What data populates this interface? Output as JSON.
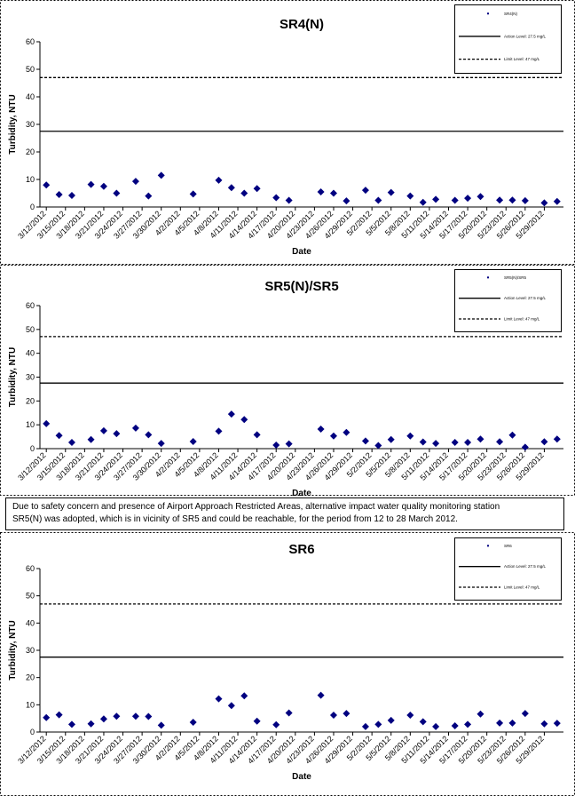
{
  "chart_data": [
    {
      "type": "scatter",
      "title": "SR4(N)",
      "x_label": "Date",
      "y_label": "Turbidity, NTU",
      "xlim": [
        "3/11/2012",
        "6/1/2012"
      ],
      "ylim": [
        0,
        60
      ],
      "yticks": [
        0,
        10,
        20,
        30,
        40,
        50,
        60
      ],
      "xticks": [
        "3/12/2012",
        "3/15/2012",
        "3/18/2012",
        "3/21/2012",
        "3/24/2012",
        "3/27/2012",
        "3/30/2012",
        "4/2/2012",
        "4/5/2012",
        "4/8/2012",
        "4/11/2012",
        "4/14/2012",
        "4/17/2012",
        "4/20/2012",
        "4/23/2012",
        "4/26/2012",
        "4/29/2012",
        "5/2/2012",
        "5/5/2012",
        "5/8/2012",
        "5/11/2012",
        "5/14/2012",
        "5/17/2012",
        "5/20/2012",
        "5/23/2012",
        "5/26/2012",
        "5/29/2012"
      ],
      "series": [
        {
          "name": "SR4(N)",
          "color": "#000080",
          "x": [
            "3/12/2012",
            "3/14/2012",
            "3/16/2012",
            "3/19/2012",
            "3/21/2012",
            "3/23/2012",
            "3/26/2012",
            "3/28/2012",
            "3/30/2012",
            "4/4/2012",
            "4/8/2012",
            "4/10/2012",
            "4/12/2012",
            "4/14/2012",
            "4/17/2012",
            "4/19/2012",
            "4/24/2012",
            "4/26/2012",
            "4/28/2012",
            "5/1/2012",
            "5/3/2012",
            "5/5/2012",
            "5/8/2012",
            "5/10/2012",
            "5/12/2012",
            "5/15/2012",
            "5/17/2012",
            "5/19/2012",
            "5/22/2012",
            "5/24/2012",
            "5/26/2012",
            "5/29/2012",
            "5/31/2012"
          ],
          "values": [
            8,
            4.5,
            4.2,
            8.2,
            7.5,
            5,
            9.3,
            4,
            11.5,
            4.7,
            9.7,
            7,
            5,
            6.7,
            3.4,
            2.4,
            5.5,
            5,
            2.2,
            6.1,
            2.4,
            5.3,
            4,
            1.7,
            2.8,
            2.4,
            3.2,
            3.8,
            2.5,
            2.5,
            2.3,
            1.5,
            2
          ]
        }
      ],
      "reference_lines": [
        {
          "name": "Action Level: 27.5 mg/L",
          "value": 27.5,
          "style": "solid",
          "color": "#000000"
        },
        {
          "name": "Limit Level: 47 mg/L",
          "value": 47,
          "style": "dashed",
          "color": "#000000"
        }
      ]
    },
    {
      "type": "scatter",
      "title": "SR5(N)/SR5",
      "x_label": "Date",
      "y_label": "Turbidity, NTU",
      "xlim": [
        "3/11/2012",
        "6/1/2012"
      ],
      "ylim": [
        0,
        60
      ],
      "yticks": [
        0,
        10,
        20,
        30,
        40,
        50,
        60
      ],
      "xticks": [
        "3/12/2012",
        "3/15/2012",
        "3/18/2012",
        "3/21/2012",
        "3/24/2012",
        "3/27/2012",
        "3/30/2012",
        "4/2/2012",
        "4/5/2012",
        "4/8/2012",
        "4/11/2012",
        "4/14/2012",
        "4/17/2012",
        "4/20/2012",
        "4/23/2012",
        "4/26/2012",
        "4/29/2012",
        "5/2/2012",
        "5/5/2012",
        "5/8/2012",
        "5/11/2012",
        "5/14/2012",
        "5/17/2012",
        "5/20/2012",
        "5/23/2012",
        "5/26/2012",
        "5/29/2012"
      ],
      "series": [
        {
          "name": "SR5(N)/SR5",
          "color": "#000080",
          "x": [
            "3/12/2012",
            "3/14/2012",
            "3/16/2012",
            "3/19/2012",
            "3/21/2012",
            "3/23/2012",
            "3/26/2012",
            "3/28/2012",
            "3/30/2012",
            "4/4/2012",
            "4/8/2012",
            "4/10/2012",
            "4/12/2012",
            "4/14/2012",
            "4/17/2012",
            "4/19/2012",
            "4/24/2012",
            "4/26/2012",
            "4/28/2012",
            "5/1/2012",
            "5/3/2012",
            "5/5/2012",
            "5/8/2012",
            "5/10/2012",
            "5/12/2012",
            "5/15/2012",
            "5/17/2012",
            "5/19/2012",
            "5/22/2012",
            "5/24/2012",
            "5/26/2012",
            "5/29/2012",
            "5/31/2012"
          ],
          "values": [
            10.5,
            5.5,
            2.6,
            3.8,
            7.5,
            6.3,
            8.6,
            5.8,
            2.2,
            3,
            7.3,
            14.5,
            12.2,
            5.8,
            1.5,
            2,
            8.2,
            5.3,
            6.8,
            3.2,
            1.3,
            3.8,
            5.3,
            2.8,
            2.2,
            2.6,
            2.6,
            4,
            2.9,
            5.7,
            0.6,
            2.9,
            4
          ]
        }
      ],
      "reference_lines": [
        {
          "name": "Action Level: 27.5 mg/L",
          "value": 27.5,
          "style": "solid",
          "color": "#000000"
        },
        {
          "name": "Limit Level: 47 mg/L",
          "value": 47,
          "style": "dashed",
          "color": "#000000"
        }
      ]
    },
    {
      "type": "scatter",
      "title": "SR6",
      "x_label": "Date",
      "y_label": "Turbidity, NTU",
      "xlim": [
        "3/11/2012",
        "6/1/2012"
      ],
      "ylim": [
        0,
        60
      ],
      "yticks": [
        0,
        10,
        20,
        30,
        40,
        50,
        60
      ],
      "xticks": [
        "3/12/2012",
        "3/15/2012",
        "3/18/2012",
        "3/21/2012",
        "3/24/2012",
        "3/27/2012",
        "3/30/2012",
        "4/2/2012",
        "4/5/2012",
        "4/8/2012",
        "4/11/2012",
        "4/14/2012",
        "4/17/2012",
        "4/20/2012",
        "4/23/2012",
        "4/26/2012",
        "4/29/2012",
        "5/2/2012",
        "5/5/2012",
        "5/8/2012",
        "5/11/2012",
        "5/14/2012",
        "5/17/2012",
        "5/20/2012",
        "5/23/2012",
        "5/26/2012",
        "5/29/2012"
      ],
      "series": [
        {
          "name": "SR6",
          "color": "#000080",
          "x": [
            "3/12/2012",
            "3/14/2012",
            "3/16/2012",
            "3/19/2012",
            "3/21/2012",
            "3/23/2012",
            "3/26/2012",
            "3/28/2012",
            "3/30/2012",
            "4/4/2012",
            "4/8/2012",
            "4/10/2012",
            "4/12/2012",
            "4/14/2012",
            "4/17/2012",
            "4/19/2012",
            "4/24/2012",
            "4/26/2012",
            "4/28/2012",
            "5/1/2012",
            "5/3/2012",
            "5/5/2012",
            "5/8/2012",
            "5/10/2012",
            "5/12/2012",
            "5/15/2012",
            "5/17/2012",
            "5/19/2012",
            "5/22/2012",
            "5/24/2012",
            "5/26/2012",
            "5/29/2012",
            "5/31/2012"
          ],
          "values": [
            5.3,
            6.3,
            2.8,
            3,
            4.8,
            5.8,
            5.8,
            5.7,
            2.5,
            3.6,
            12.2,
            9.7,
            13.3,
            4,
            2.7,
            7,
            13.5,
            6.2,
            6.8,
            2,
            2.8,
            4.3,
            6.2,
            3.8,
            2,
            2.3,
            2.8,
            6.6,
            3.3,
            3.3,
            6.8,
            3,
            3.2
          ]
        }
      ],
      "reference_lines": [
        {
          "name": "Action Level: 27.5 mg/L",
          "value": 27.5,
          "style": "solid",
          "color": "#000000"
        },
        {
          "name": "Limit Level: 47 mg/L",
          "value": 47,
          "style": "dashed",
          "color": "#000000"
        }
      ]
    }
  ],
  "note": [
    "Due to safety concern and presence of Airport Approach Restricted Areas, alternative impact water quality monitoring station",
    "SR5(N) was adopted, which is in vicinity of SR5 and could be reachable, for the period from 12 to 28 March 2012."
  ]
}
